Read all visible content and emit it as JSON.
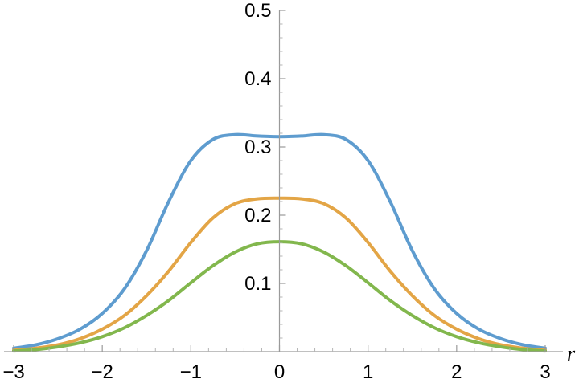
{
  "chart_data": {
    "type": "line",
    "title": "",
    "xlabel": "r",
    "ylabel": "",
    "xlim": [
      -3,
      3
    ],
    "ylim": [
      0,
      0.5
    ],
    "grid": false,
    "x_ticks": [
      -3,
      -2,
      -1,
      0,
      1,
      2,
      3
    ],
    "x_tick_labels": [
      "−3",
      "−2",
      "−1",
      "0",
      "1",
      "2",
      "3"
    ],
    "y_ticks": [
      0.1,
      0.2,
      0.3,
      0.4,
      0.5
    ],
    "y_tick_labels": [
      "0.1",
      "0.2",
      "0.3",
      "0.4",
      "0.5"
    ],
    "series": [
      {
        "color": "#5e9ccf",
        "x": [
          -3,
          -2.75,
          -2.5,
          -2.25,
          -2,
          -1.75,
          -1.5,
          -1.25,
          -1,
          -0.75,
          -0.5,
          -0.25,
          0,
          0.25,
          0.5,
          0.75,
          1,
          1.25,
          1.5,
          1.75,
          2,
          2.25,
          2.5,
          2.75,
          3
        ],
        "y": [
          0.005,
          0.01,
          0.019,
          0.033,
          0.056,
          0.092,
          0.148,
          0.22,
          0.28,
          0.311,
          0.318,
          0.316,
          0.315,
          0.316,
          0.318,
          0.311,
          0.28,
          0.22,
          0.148,
          0.092,
          0.056,
          0.033,
          0.019,
          0.01,
          0.005
        ]
      },
      {
        "color": "#e3a546",
        "x": [
          -3,
          -2.75,
          -2.5,
          -2.25,
          -2,
          -1.75,
          -1.5,
          -1.25,
          -1,
          -0.75,
          -0.5,
          -0.25,
          0,
          0.25,
          0.5,
          0.75,
          1,
          1.25,
          1.5,
          1.75,
          2,
          2.25,
          2.5,
          2.75,
          3
        ],
        "y": [
          0.002,
          0.005,
          0.01,
          0.019,
          0.033,
          0.053,
          0.082,
          0.118,
          0.16,
          0.196,
          0.217,
          0.224,
          0.225,
          0.224,
          0.217,
          0.196,
          0.16,
          0.118,
          0.082,
          0.053,
          0.033,
          0.019,
          0.01,
          0.005,
          0.002
        ]
      },
      {
        "color": "#82b74d",
        "x": [
          -3,
          -2.75,
          -2.5,
          -2.25,
          -2,
          -1.75,
          -1.5,
          -1.25,
          -1,
          -0.75,
          -0.5,
          -0.25,
          0,
          0.25,
          0.5,
          0.75,
          1,
          1.25,
          1.5,
          1.75,
          2,
          2.25,
          2.5,
          2.75,
          3
        ],
        "y": [
          0.001,
          0.003,
          0.007,
          0.013,
          0.022,
          0.035,
          0.053,
          0.075,
          0.101,
          0.126,
          0.146,
          0.158,
          0.161,
          0.158,
          0.146,
          0.126,
          0.101,
          0.075,
          0.053,
          0.035,
          0.022,
          0.013,
          0.007,
          0.003,
          0.001
        ]
      }
    ]
  }
}
